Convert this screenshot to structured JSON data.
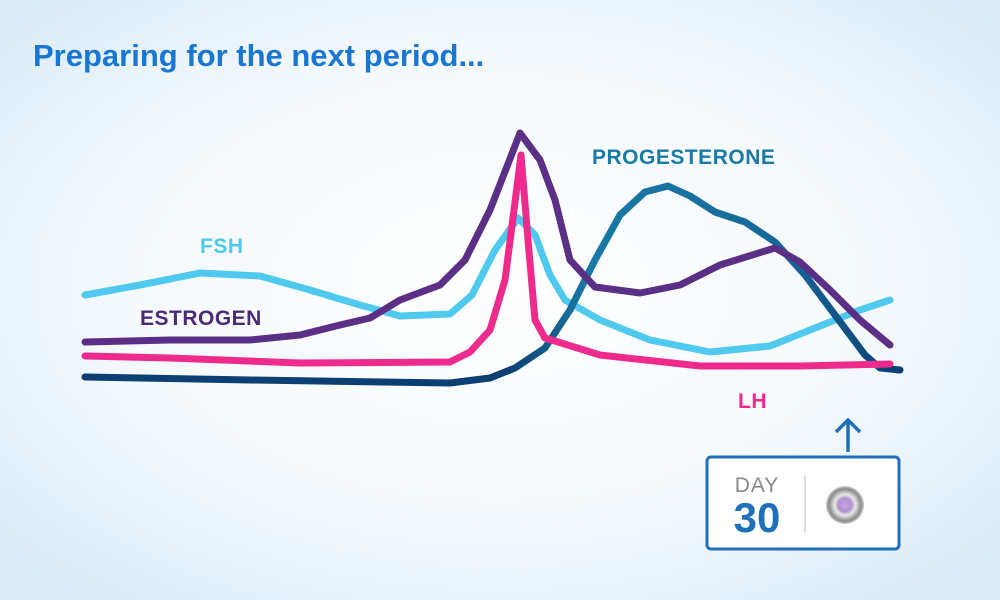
{
  "title": "Preparing for the next period...",
  "labels": {
    "fsh": "FSH",
    "estrogen": "ESTROGEN",
    "progesterone": "PROGESTERONE",
    "lh": "LH"
  },
  "day_badge": {
    "label": "DAY",
    "number": 30
  }
}
